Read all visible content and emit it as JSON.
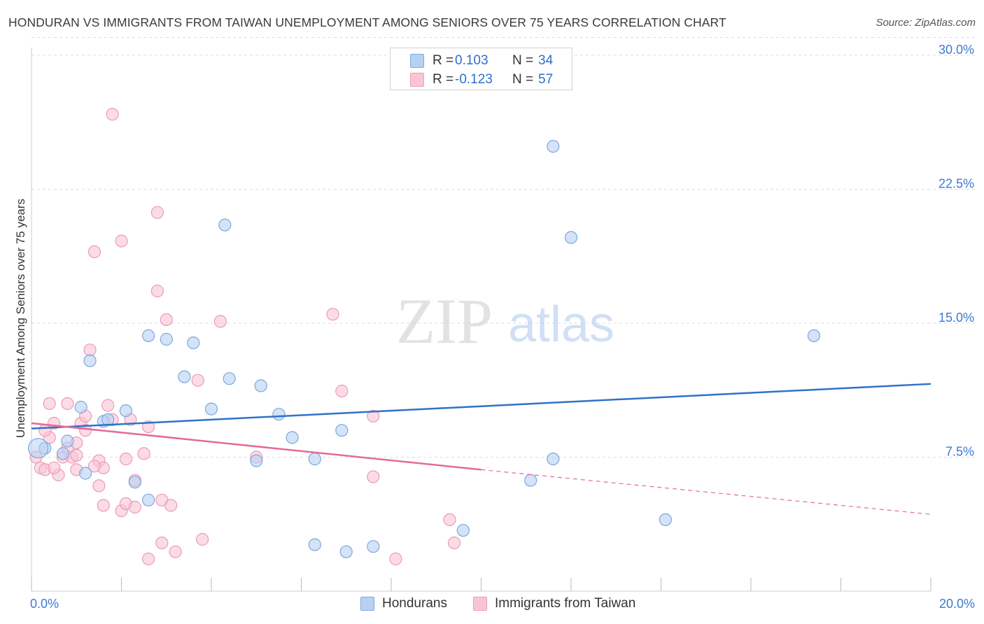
{
  "header": {
    "title": "HONDURAN VS IMMIGRANTS FROM TAIWAN UNEMPLOYMENT AMONG SENIORS OVER 75 YEARS CORRELATION CHART",
    "source": "Source: ZipAtlas.com"
  },
  "legend_top": {
    "rows": [
      {
        "r_label": "R =",
        "r_value": "0.103",
        "n_label": "N =",
        "n_value": "34"
      },
      {
        "r_label": "R =",
        "r_value": "-0.123",
        "n_label": "N =",
        "n_value": "57"
      }
    ]
  },
  "legend_bottom": {
    "hondurans": "Hondurans",
    "taiwan": "Immigrants from Taiwan"
  },
  "watermark": {
    "zip": "ZIP",
    "atlas": "atlas"
  },
  "colors": {
    "blue_fill": "#b7d1f2",
    "blue_stroke": "#7da7e0",
    "blue_line": "#2f72c9",
    "pink_fill": "#f9c5d5",
    "pink_stroke": "#ee9ab5",
    "pink_line": "#e56a97",
    "grid": "#dcdcdc",
    "tick_text": "#3d7ad3"
  },
  "chart_data": {
    "type": "scatter",
    "title": "HONDURAN VS IMMIGRANTS FROM TAIWAN UNEMPLOYMENT AMONG SENIORS OVER 75 YEARS CORRELATION CHART",
    "xlabel": "",
    "ylabel": "Unemployment Among Seniors over 75 years",
    "xlim": [
      0,
      20
    ],
    "ylim": [
      0,
      31
    ],
    "x_tick_labels": [
      "0.0%",
      "20.0%"
    ],
    "y_ticks": [
      7.5,
      15.0,
      22.5,
      30.0
    ],
    "y_tick_labels": [
      "7.5%",
      "15.0%",
      "22.5%",
      "30.0%"
    ],
    "grid": true,
    "series": [
      {
        "name": "Hondurans",
        "R": 0.103,
        "N": 34,
        "trend": {
          "x0": 0,
          "y0": 9.1,
          "x1": 20,
          "y1": 11.6
        },
        "points": [
          [
            0.3,
            8.0
          ],
          [
            0.8,
            8.4
          ],
          [
            0.7,
            7.7
          ],
          [
            1.2,
            6.6
          ],
          [
            1.6,
            9.5
          ],
          [
            1.3,
            12.9
          ],
          [
            2.1,
            10.1
          ],
          [
            2.6,
            14.3
          ],
          [
            3.0,
            14.1
          ],
          [
            2.3,
            6.1
          ],
          [
            2.6,
            5.1
          ],
          [
            3.4,
            12.0
          ],
          [
            3.6,
            13.9
          ],
          [
            4.4,
            11.9
          ],
          [
            4.0,
            10.2
          ],
          [
            5.1,
            11.5
          ],
          [
            5.0,
            7.3
          ],
          [
            5.5,
            9.9
          ],
          [
            5.8,
            8.6
          ],
          [
            4.3,
            20.5
          ],
          [
            6.3,
            7.4
          ],
          [
            6.3,
            2.6
          ],
          [
            6.9,
            9.0
          ],
          [
            7.0,
            2.2
          ],
          [
            7.6,
            2.5
          ],
          [
            9.6,
            3.4
          ],
          [
            11.1,
            6.2
          ],
          [
            11.6,
            24.9
          ],
          [
            11.6,
            7.4
          ],
          [
            12.0,
            19.8
          ],
          [
            14.1,
            4.0
          ],
          [
            17.4,
            14.3
          ],
          [
            1.1,
            10.3
          ],
          [
            1.7,
            9.6
          ]
        ]
      },
      {
        "name": "Immigrants from Taiwan",
        "R": -0.123,
        "N": 57,
        "trend": {
          "x0": 0,
          "y0": 9.4,
          "x1": 10,
          "y1": 6.8,
          "dashed_to_x": 20,
          "dashed_to_y": 4.3
        },
        "points": [
          [
            0.1,
            7.5
          ],
          [
            0.2,
            6.9
          ],
          [
            0.3,
            6.8
          ],
          [
            0.4,
            8.6
          ],
          [
            0.5,
            9.4
          ],
          [
            0.6,
            6.5
          ],
          [
            0.7,
            7.5
          ],
          [
            0.8,
            8.0
          ],
          [
            0.9,
            7.5
          ],
          [
            1.0,
            8.3
          ],
          [
            1.0,
            6.8
          ],
          [
            1.1,
            9.4
          ],
          [
            1.2,
            9.0
          ],
          [
            1.3,
            13.5
          ],
          [
            1.4,
            19.0
          ],
          [
            1.5,
            7.3
          ],
          [
            1.5,
            5.9
          ],
          [
            1.6,
            6.9
          ],
          [
            1.6,
            4.8
          ],
          [
            1.7,
            10.4
          ],
          [
            1.8,
            9.6
          ],
          [
            1.8,
            26.7
          ],
          [
            2.0,
            19.6
          ],
          [
            2.0,
            4.5
          ],
          [
            2.1,
            4.9
          ],
          [
            2.1,
            7.4
          ],
          [
            2.3,
            4.7
          ],
          [
            2.3,
            6.2
          ],
          [
            2.5,
            7.7
          ],
          [
            2.6,
            9.2
          ],
          [
            2.6,
            1.8
          ],
          [
            2.8,
            21.2
          ],
          [
            2.8,
            16.8
          ],
          [
            2.9,
            5.1
          ],
          [
            2.9,
            2.7
          ],
          [
            3.0,
            15.2
          ],
          [
            3.1,
            4.8
          ],
          [
            3.2,
            2.2
          ],
          [
            3.7,
            11.8
          ],
          [
            3.8,
            2.9
          ],
          [
            4.2,
            15.1
          ],
          [
            5.0,
            7.5
          ],
          [
            6.7,
            15.5
          ],
          [
            6.9,
            11.2
          ],
          [
            7.6,
            6.4
          ],
          [
            7.6,
            9.8
          ],
          [
            8.1,
            1.8
          ],
          [
            9.3,
            4.0
          ],
          [
            9.4,
            2.7
          ],
          [
            0.4,
            10.5
          ],
          [
            0.8,
            10.5
          ],
          [
            0.3,
            9.0
          ],
          [
            1.0,
            7.6
          ],
          [
            0.5,
            6.9
          ],
          [
            1.2,
            9.8
          ],
          [
            2.2,
            9.6
          ],
          [
            1.4,
            7.0
          ]
        ]
      }
    ]
  }
}
